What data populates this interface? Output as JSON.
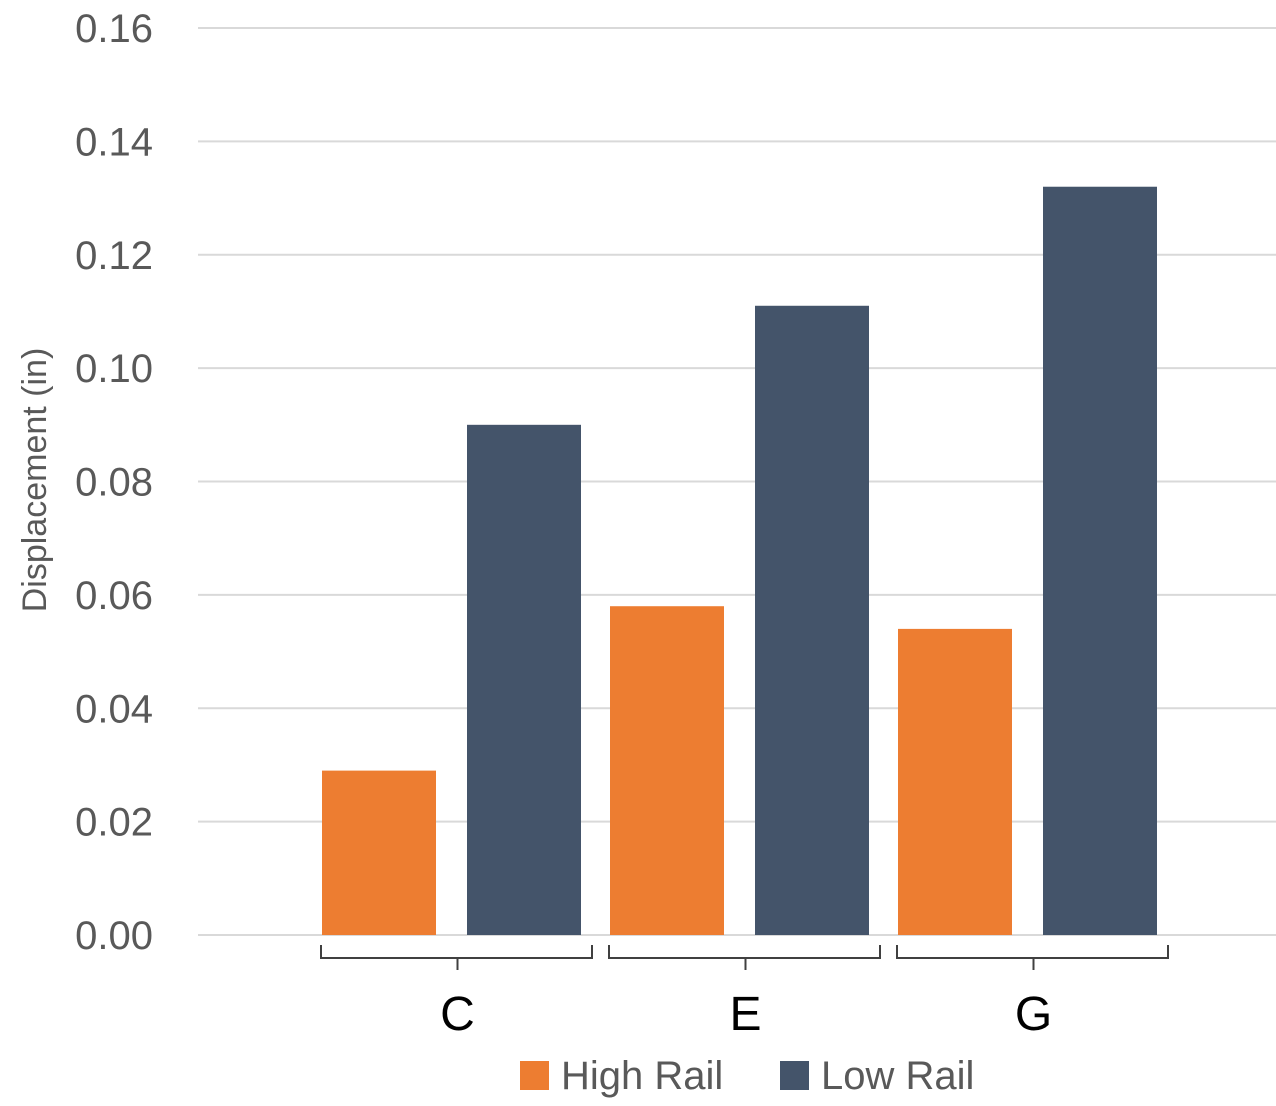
{
  "chart_data": {
    "type": "bar",
    "title": "",
    "xlabel": "",
    "ylabel": "Displacement  (in)",
    "categories": [
      "C",
      "E",
      "G"
    ],
    "series": [
      {
        "name": "High Rail",
        "color": "#ED7D31",
        "values": [
          0.029,
          0.058,
          0.054
        ]
      },
      {
        "name": "Low Rail",
        "color": "#44546A",
        "values": [
          0.09,
          0.111,
          0.132
        ]
      }
    ],
    "ylim": [
      0,
      0.16
    ],
    "yticks": [
      "0.00",
      "0.02",
      "0.04",
      "0.06",
      "0.08",
      "0.10",
      "0.12",
      "0.14",
      "0.16"
    ],
    "grid": true,
    "legend_position": "bottom"
  }
}
